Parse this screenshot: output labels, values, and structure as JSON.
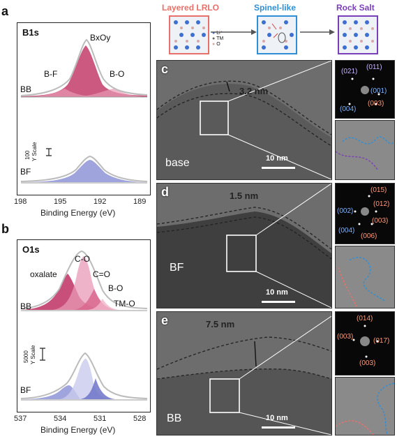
{
  "panel_a": {
    "letter": "a",
    "title": "B1s",
    "peak_main": "BxOy",
    "peak_left": "B-F",
    "peak_right": "B-O",
    "row_top": "BB",
    "row_bottom": "BF",
    "scale_value": "100",
    "scale_unit": "Y Scale",
    "x_ticks": [
      "198",
      "195",
      "192",
      "189"
    ],
    "x_label": "Binding Energy (eV)"
  },
  "panel_b": {
    "letter": "b",
    "title": "O1s",
    "peak_co": "C-O",
    "peak_oxalate": "oxalate",
    "peak_ceo": "C=O",
    "peak_bo": "B-O",
    "peak_tmo": "TM-O",
    "row_top": "BB",
    "row_bottom": "BF",
    "scale_value": "5000",
    "scale_unit": "Y Scale",
    "x_ticks": [
      "537",
      "534",
      "531",
      "528"
    ],
    "x_label": "Binding Energy (eV)"
  },
  "schematic": {
    "stage1": "Layered LRLO",
    "stage2": "Spinel-like",
    "stage3": "Rock Salt",
    "legend": [
      "Li⁺",
      "TM",
      "O"
    ],
    "colors": {
      "stage1": "#e8706a",
      "stage2": "#2f8fd6",
      "stage3": "#7a3fb8"
    }
  },
  "panel_c": {
    "letter": "c",
    "thickness": "3.2 nm",
    "sample": "base",
    "scalebar": "10 nm",
    "fft_labels": [
      "(021)",
      "(011)",
      "(001)",
      "(004)",
      "(003)"
    ]
  },
  "panel_d": {
    "letter": "d",
    "thickness": "1.5 nm",
    "sample": "BF",
    "scalebar": "10 nm",
    "fft_labels": [
      "(015)",
      "(002)",
      "(012)",
      "(003)",
      "(004)",
      "(006)"
    ]
  },
  "panel_e": {
    "letter": "e",
    "thickness": "7.5 nm",
    "sample": "BB",
    "scalebar": "10 nm",
    "fft_labels": [
      "(014)",
      "(003)",
      "(017)",
      "(003)"
    ]
  }
}
